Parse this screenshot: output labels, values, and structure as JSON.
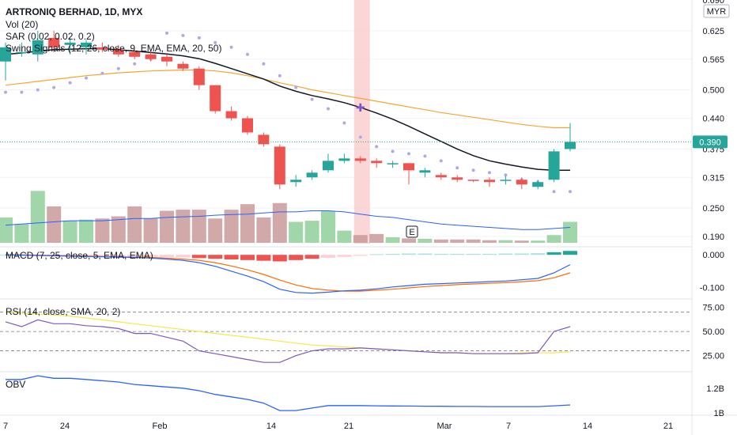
{
  "header": {
    "title": "ARTRONIQ BERHAD, 1D, MYX",
    "indicators": [
      "Vol (20)",
      "SAR (0.02, 0.02, 0.2)",
      "Swing Signals (12, 26, close, 9, EMA, EMA, 20, 50)"
    ]
  },
  "currency_badge": "MYR",
  "last_price_label": "0.390",
  "event_marker": "E",
  "x_axis": {
    "labels": [
      "7",
      "24",
      "Feb",
      "14",
      "21",
      "Mar",
      "7",
      "14",
      "21"
    ]
  },
  "colors": {
    "up": "#26a69a",
    "down": "#ef5350",
    "ema_fast": "#131722",
    "ema_slow": "#f7a530",
    "sar": "#b2a9e0",
    "vol_ma": "#2962ff",
    "highlight": "#f8c8c8",
    "macd": "#2962ff",
    "signal": "#ff6d00",
    "rsi": "#7e57c2",
    "rsi_ma": "#f5e94a",
    "obv": "#2962ff"
  },
  "chart_data": [
    {
      "type": "candlestick",
      "title": "ARTRONIQ BERHAD, 1D, MYX",
      "y_ticks": [
        "0.690",
        "0.625",
        "0.565",
        "0.500",
        "0.440",
        "0.375",
        "0.315",
        "0.250",
        "0.190"
      ],
      "ylim": [
        0.175,
        0.69
      ],
      "candles": [
        {
          "o": 0.56,
          "h": 0.6,
          "l": 0.52,
          "c": 0.59
        },
        {
          "o": 0.58,
          "h": 0.6,
          "l": 0.57,
          "c": 0.58
        },
        {
          "o": 0.575,
          "h": 0.625,
          "l": 0.56,
          "c": 0.605
        },
        {
          "o": 0.61,
          "h": 0.625,
          "l": 0.58,
          "c": 0.59
        },
        {
          "o": 0.595,
          "h": 0.61,
          "l": 0.575,
          "c": 0.6
        },
        {
          "o": 0.59,
          "h": 0.605,
          "l": 0.575,
          "c": 0.6
        },
        {
          "o": 0.59,
          "h": 0.6,
          "l": 0.58,
          "c": 0.585
        },
        {
          "o": 0.585,
          "h": 0.595,
          "l": 0.57,
          "c": 0.575
        },
        {
          "o": 0.58,
          "h": 0.585,
          "l": 0.565,
          "c": 0.57
        },
        {
          "o": 0.575,
          "h": 0.585,
          "l": 0.56,
          "c": 0.565
        },
        {
          "o": 0.57,
          "h": 0.575,
          "l": 0.55,
          "c": 0.56
        },
        {
          "o": 0.555,
          "h": 0.56,
          "l": 0.54,
          "c": 0.545
        },
        {
          "o": 0.545,
          "h": 0.55,
          "l": 0.5,
          "c": 0.51
        },
        {
          "o": 0.51,
          "h": 0.51,
          "l": 0.45,
          "c": 0.455
        },
        {
          "o": 0.455,
          "h": 0.465,
          "l": 0.435,
          "c": 0.44
        },
        {
          "o": 0.44,
          "h": 0.445,
          "l": 0.405,
          "c": 0.41
        },
        {
          "o": 0.405,
          "h": 0.41,
          "l": 0.38,
          "c": 0.385
        },
        {
          "o": 0.38,
          "h": 0.385,
          "l": 0.29,
          "c": 0.3
        },
        {
          "o": 0.305,
          "h": 0.32,
          "l": 0.295,
          "c": 0.31
        },
        {
          "o": 0.315,
          "h": 0.33,
          "l": 0.31,
          "c": 0.325
        },
        {
          "o": 0.33,
          "h": 0.365,
          "l": 0.325,
          "c": 0.35
        },
        {
          "o": 0.35,
          "h": 0.365,
          "l": 0.345,
          "c": 0.355
        },
        {
          "o": 0.355,
          "h": 0.36,
          "l": 0.345,
          "c": 0.35
        },
        {
          "o": 0.35,
          "h": 0.355,
          "l": 0.335,
          "c": 0.345
        },
        {
          "o": 0.345,
          "h": 0.35,
          "l": 0.335,
          "c": 0.345
        },
        {
          "o": 0.345,
          "h": 0.345,
          "l": 0.3,
          "c": 0.33
        },
        {
          "o": 0.325,
          "h": 0.335,
          "l": 0.315,
          "c": 0.33
        },
        {
          "o": 0.32,
          "h": 0.325,
          "l": 0.31,
          "c": 0.315
        },
        {
          "o": 0.315,
          "h": 0.32,
          "l": 0.305,
          "c": 0.31
        },
        {
          "o": 0.31,
          "h": 0.31,
          "l": 0.305,
          "c": 0.308
        },
        {
          "o": 0.31,
          "h": 0.315,
          "l": 0.295,
          "c": 0.305
        },
        {
          "o": 0.308,
          "h": 0.318,
          "l": 0.3,
          "c": 0.31
        },
        {
          "o": 0.31,
          "h": 0.315,
          "l": 0.29,
          "c": 0.3
        },
        {
          "o": 0.295,
          "h": 0.31,
          "l": 0.29,
          "c": 0.305
        },
        {
          "o": 0.31,
          "h": 0.375,
          "l": 0.305,
          "c": 0.37
        },
        {
          "o": 0.375,
          "h": 0.43,
          "l": 0.37,
          "c": 0.39
        }
      ],
      "ema_fast": [
        0.575,
        0.578,
        0.582,
        0.585,
        0.586,
        0.587,
        0.587,
        0.585,
        0.582,
        0.579,
        0.576,
        0.572,
        0.566,
        0.556,
        0.545,
        0.534,
        0.523,
        0.508,
        0.497,
        0.488,
        0.481,
        0.473,
        0.463,
        0.451,
        0.438,
        0.423,
        0.407,
        0.391,
        0.375,
        0.361,
        0.35,
        0.343,
        0.337,
        0.332,
        0.33,
        0.33
      ],
      "ema_slow": [
        0.51,
        0.514,
        0.518,
        0.522,
        0.526,
        0.53,
        0.533,
        0.536,
        0.538,
        0.54,
        0.541,
        0.542,
        0.542,
        0.54,
        0.536,
        0.53,
        0.523,
        0.515,
        0.508,
        0.5,
        0.494,
        0.488,
        0.482,
        0.476,
        0.47,
        0.464,
        0.458,
        0.452,
        0.447,
        0.442,
        0.437,
        0.432,
        0.427,
        0.423,
        0.42,
        0.42
      ],
      "sar": [
        0.495,
        0.495,
        0.5,
        0.505,
        0.515,
        0.525,
        0.535,
        0.545,
        0.555,
        0.565,
        0.62,
        0.615,
        0.61,
        0.6,
        0.59,
        0.575,
        0.555,
        0.53,
        0.505,
        0.48,
        0.46,
        0.43,
        0.4,
        0.38,
        0.37,
        0.365,
        0.36,
        0.35,
        0.335,
        0.33,
        0.325,
        0.32,
        0.31,
        0.305,
        0.285,
        0.285
      ],
      "volume": [
        115,
        85,
        235,
        165,
        100,
        105,
        110,
        120,
        165,
        110,
        145,
        150,
        150,
        110,
        150,
        175,
        115,
        180,
        95,
        100,
        145,
        55,
        35,
        40,
        25,
        20,
        18,
        15,
        15,
        15,
        12,
        12,
        10,
        10,
        35,
        95
      ],
      "volume_ma": [
        80,
        85,
        90,
        95,
        100,
        100,
        100,
        105,
        110,
        110,
        115,
        118,
        120,
        125,
        128,
        130,
        135,
        140,
        140,
        145,
        145,
        140,
        130,
        120,
        115,
        105,
        95,
        85,
        80,
        75,
        70,
        65,
        60,
        60,
        65,
        70
      ],
      "highlight_bar_index": 22
    },
    {
      "type": "bar+line",
      "title": "MACD (7, 25, close, 5, EMA, EMA)",
      "y_ticks": [
        "0.000",
        "-0.100"
      ],
      "ylim": [
        -0.13,
        0.015
      ],
      "histogram": [
        0.0,
        -0.001,
        -0.002,
        -0.003,
        -0.003,
        -0.004,
        -0.004,
        -0.005,
        -0.005,
        -0.006,
        -0.007,
        -0.008,
        -0.01,
        -0.012,
        -0.014,
        -0.016,
        -0.018,
        -0.02,
        -0.016,
        -0.012,
        -0.009,
        -0.006,
        -0.003,
        0.002,
        0.003,
        0.004,
        0.004,
        0.003,
        0.003,
        0.003,
        0.003,
        0.004,
        0.004,
        0.005,
        0.008,
        0.012
      ],
      "macd": [
        0.0,
        -0.001,
        -0.002,
        -0.003,
        -0.004,
        -0.005,
        -0.006,
        -0.007,
        -0.008,
        -0.01,
        -0.013,
        -0.017,
        -0.024,
        -0.035,
        -0.05,
        -0.065,
        -0.082,
        -0.105,
        -0.115,
        -0.117,
        -0.114,
        -0.11,
        -0.108,
        -0.104,
        -0.098,
        -0.094,
        -0.09,
        -0.088,
        -0.086,
        -0.084,
        -0.082,
        -0.08,
        -0.076,
        -0.072,
        -0.055,
        -0.03
      ],
      "signal": [
        0.0,
        0.0,
        -0.001,
        -0.002,
        -0.003,
        -0.004,
        -0.005,
        -0.006,
        -0.007,
        -0.008,
        -0.01,
        -0.013,
        -0.017,
        -0.024,
        -0.034,
        -0.046,
        -0.06,
        -0.077,
        -0.092,
        -0.103,
        -0.108,
        -0.111,
        -0.111,
        -0.108,
        -0.105,
        -0.101,
        -0.097,
        -0.094,
        -0.091,
        -0.089,
        -0.087,
        -0.085,
        -0.082,
        -0.079,
        -0.07,
        -0.055
      ]
    },
    {
      "type": "line",
      "title": "RSI (14, close, SMA, 20, 2)",
      "y_ticks": [
        "75.00",
        "50.00",
        "25.00"
      ],
      "ylim": [
        10,
        82
      ],
      "bands": [
        70,
        50,
        30
      ],
      "rsi": [
        60,
        55,
        62,
        58,
        58,
        56,
        55,
        53,
        48,
        48,
        44,
        40,
        30,
        27,
        24,
        21,
        18,
        18,
        25,
        30,
        32,
        32,
        33,
        32,
        31,
        30,
        29,
        28,
        28,
        27,
        27,
        27,
        27,
        28,
        50,
        55
      ],
      "rsi_ma": [
        70,
        69,
        68,
        67,
        66,
        64,
        62,
        60,
        58,
        56,
        54,
        52,
        50,
        48,
        46,
        44,
        42,
        40,
        38,
        36,
        35,
        34,
        33,
        32,
        31,
        30,
        29,
        28,
        28,
        27,
        27,
        27,
        28,
        28,
        28,
        29
      ]
    },
    {
      "type": "line",
      "title": "OBV",
      "y_ticks": [
        "1.2B",
        "1B"
      ],
      "ylim": [
        0.995,
        1.32
      ],
      "obv": [
        1.27,
        1.27,
        1.3,
        1.28,
        1.28,
        1.27,
        1.26,
        1.25,
        1.23,
        1.22,
        1.21,
        1.2,
        1.18,
        1.15,
        1.13,
        1.11,
        1.08,
        1.02,
        1.02,
        1.04,
        1.06,
        1.06,
        1.06,
        1.058,
        1.057,
        1.056,
        1.055,
        1.054,
        1.053,
        1.053,
        1.052,
        1.052,
        1.052,
        1.052,
        1.058,
        1.065
      ]
    }
  ]
}
